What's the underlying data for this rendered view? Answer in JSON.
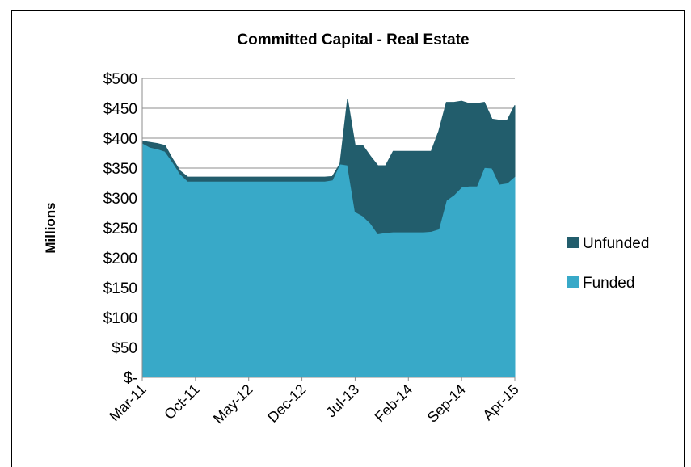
{
  "chart_data": {
    "type": "stacked_area",
    "title": "Committed Capital - Real Estate",
    "y_label": "Millions",
    "categories": [
      "Mar-11",
      null,
      null,
      null,
      null,
      null,
      null,
      "Oct-11",
      null,
      null,
      null,
      null,
      null,
      null,
      "May-12",
      null,
      null,
      null,
      null,
      null,
      null,
      "Dec-12",
      null,
      null,
      null,
      null,
      null,
      null,
      "Jul-13",
      null,
      null,
      null,
      null,
      null,
      null,
      "Feb-14",
      null,
      null,
      null,
      null,
      null,
      null,
      "Sep-14",
      null,
      null,
      null,
      null,
      null,
      null,
      "Apr-15"
    ],
    "series": [
      {
        "name": "Funded",
        "color": "#38a9c8",
        "values": [
          392,
          385,
          382,
          378,
          360,
          340,
          328,
          328,
          328,
          328,
          328,
          328,
          328,
          328,
          328,
          328,
          328,
          328,
          328,
          328,
          328,
          328,
          328,
          328,
          328,
          330,
          357,
          355,
          277,
          270,
          258,
          240,
          242,
          243,
          243,
          243,
          243,
          243,
          244,
          248,
          296,
          305,
          318,
          320,
          320,
          351,
          350,
          323,
          325,
          336
        ]
      },
      {
        "name": "Unfunded",
        "color": "#225d6c",
        "values": [
          3,
          8,
          9,
          10,
          5,
          5,
          7,
          7,
          7,
          7,
          7,
          7,
          7,
          7,
          7,
          7,
          7,
          7,
          7,
          7,
          7,
          7,
          7,
          7,
          7,
          6,
          0,
          111,
          111,
          118,
          112,
          114,
          112,
          135,
          135,
          135,
          135,
          135,
          134,
          164,
          164,
          155,
          144,
          138,
          138,
          109,
          82,
          107,
          105,
          119
        ]
      }
    ],
    "ylim": [
      0,
      500
    ],
    "yticks": [
      {
        "value": 0,
        "label": "$-"
      },
      {
        "value": 50,
        "label": "$50"
      },
      {
        "value": 100,
        "label": "$100"
      },
      {
        "value": 150,
        "label": "$150"
      },
      {
        "value": 200,
        "label": "$200"
      },
      {
        "value": 250,
        "label": "$250"
      },
      {
        "value": 300,
        "label": "$300"
      },
      {
        "value": 350,
        "label": "$350"
      },
      {
        "value": 400,
        "label": "$400"
      },
      {
        "value": 450,
        "label": "$450"
      },
      {
        "value": 500,
        "label": "$500"
      }
    ],
    "grid": true,
    "legend": "right"
  }
}
